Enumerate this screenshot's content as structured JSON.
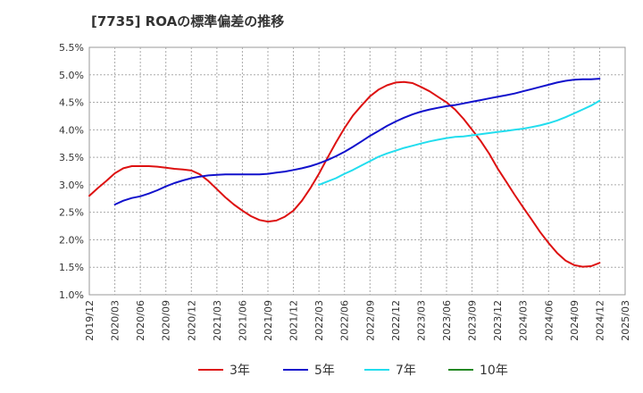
{
  "chart_data": {
    "type": "line",
    "title": "[7735]  ROAの標準偏差の推移",
    "xlabel": "",
    "ylabel": "",
    "x_ticks": [
      "2019/12",
      "2020/03",
      "2020/06",
      "2020/09",
      "2020/12",
      "2021/03",
      "2021/06",
      "2021/09",
      "2021/12",
      "2022/03",
      "2022/06",
      "2022/09",
      "2022/12",
      "2023/03",
      "2023/06",
      "2023/09",
      "2023/12",
      "2024/03",
      "2024/06",
      "2024/09",
      "2024/12",
      "2025/03"
    ],
    "y_ticks": [
      "5.5%",
      "5.0%",
      "4.5%",
      "4.0%",
      "3.5%",
      "3.0%",
      "2.5%",
      "2.0%",
      "1.5%",
      "1.0%"
    ],
    "ylim": [
      1.0,
      5.5
    ],
    "grid": true,
    "legend_position": "bottom",
    "series": [
      {
        "name": "3年",
        "color": "#dd1111",
        "x": [
          "2019/12",
          "2020/01",
          "2020/02",
          "2020/03",
          "2020/04",
          "2020/05",
          "2020/06",
          "2020/07",
          "2020/08",
          "2020/09",
          "2020/10",
          "2020/11",
          "2020/12",
          "2021/01",
          "2021/02",
          "2021/03",
          "2021/04",
          "2021/05",
          "2021/06",
          "2021/07",
          "2021/08",
          "2021/09",
          "2021/10",
          "2021/11",
          "2021/12",
          "2022/01",
          "2022/02",
          "2022/03",
          "2022/04",
          "2022/05",
          "2022/06",
          "2022/07",
          "2022/08",
          "2022/09",
          "2022/10",
          "2022/11",
          "2022/12",
          "2023/01",
          "2023/02",
          "2023/03",
          "2023/04",
          "2023/05",
          "2023/06",
          "2023/07",
          "2023/08",
          "2023/09",
          "2023/10",
          "2023/11",
          "2023/12",
          "2024/01",
          "2024/02",
          "2024/03",
          "2024/04",
          "2024/05",
          "2024/06",
          "2024/07",
          "2024/08",
          "2024/09",
          "2024/10",
          "2024/11",
          "2024/12"
        ],
        "values": [
          2.8,
          2.94,
          3.07,
          3.21,
          3.3,
          3.34,
          3.34,
          3.34,
          3.33,
          3.31,
          3.29,
          3.28,
          3.26,
          3.19,
          3.07,
          2.92,
          2.77,
          2.64,
          2.53,
          2.43,
          2.36,
          2.33,
          2.35,
          2.42,
          2.53,
          2.71,
          2.94,
          3.2,
          3.49,
          3.77,
          4.03,
          4.26,
          4.44,
          4.61,
          4.73,
          4.81,
          4.86,
          4.87,
          4.85,
          4.78,
          4.7,
          4.6,
          4.5,
          4.37,
          4.2,
          4.0,
          3.8,
          3.57,
          3.3,
          3.06,
          2.82,
          2.59,
          2.37,
          2.14,
          1.94,
          1.76,
          1.62,
          1.54,
          1.51,
          1.52,
          1.58
        ]
      },
      {
        "name": "5年",
        "color": "#1111cc",
        "x": [
          "2020/03",
          "2020/04",
          "2020/05",
          "2020/06",
          "2020/07",
          "2020/08",
          "2020/09",
          "2020/10",
          "2020/11",
          "2020/12",
          "2021/01",
          "2021/02",
          "2021/03",
          "2021/04",
          "2021/05",
          "2021/06",
          "2021/07",
          "2021/08",
          "2021/09",
          "2021/10",
          "2021/11",
          "2021/12",
          "2022/01",
          "2022/02",
          "2022/03",
          "2022/04",
          "2022/05",
          "2022/06",
          "2022/07",
          "2022/08",
          "2022/09",
          "2022/10",
          "2022/11",
          "2022/12",
          "2023/01",
          "2023/02",
          "2023/03",
          "2023/04",
          "2023/05",
          "2023/06",
          "2023/07",
          "2023/08",
          "2023/09",
          "2023/10",
          "2023/11",
          "2023/12",
          "2024/01",
          "2024/02",
          "2024/03",
          "2024/04",
          "2024/05",
          "2024/06",
          "2024/07",
          "2024/08",
          "2024/09",
          "2024/10",
          "2024/11",
          "2024/12"
        ],
        "values": [
          2.64,
          2.71,
          2.76,
          2.79,
          2.84,
          2.9,
          2.97,
          3.03,
          3.08,
          3.12,
          3.15,
          3.17,
          3.18,
          3.19,
          3.19,
          3.19,
          3.19,
          3.19,
          3.2,
          3.22,
          3.24,
          3.27,
          3.3,
          3.34,
          3.39,
          3.45,
          3.52,
          3.6,
          3.69,
          3.79,
          3.89,
          3.98,
          4.07,
          4.15,
          4.22,
          4.28,
          4.33,
          4.37,
          4.4,
          4.43,
          4.45,
          4.48,
          4.51,
          4.54,
          4.57,
          4.6,
          4.63,
          4.66,
          4.7,
          4.74,
          4.78,
          4.82,
          4.86,
          4.89,
          4.91,
          4.92,
          4.92,
          4.93
        ]
      },
      {
        "name": "7年",
        "color": "#22ddee",
        "x": [
          "2022/03",
          "2022/04",
          "2022/05",
          "2022/06",
          "2022/07",
          "2022/08",
          "2022/09",
          "2022/10",
          "2022/11",
          "2022/12",
          "2023/01",
          "2023/02",
          "2023/03",
          "2023/04",
          "2023/05",
          "2023/06",
          "2023/07",
          "2023/08",
          "2023/09",
          "2023/10",
          "2023/11",
          "2023/12",
          "2024/01",
          "2024/02",
          "2024/03",
          "2024/04",
          "2024/05",
          "2024/06",
          "2024/07",
          "2024/08",
          "2024/09",
          "2024/10",
          "2024/11",
          "2024/12"
        ],
        "values": [
          3.0,
          3.06,
          3.12,
          3.2,
          3.27,
          3.35,
          3.43,
          3.51,
          3.57,
          3.62,
          3.67,
          3.71,
          3.75,
          3.79,
          3.82,
          3.85,
          3.87,
          3.88,
          3.9,
          3.92,
          3.94,
          3.96,
          3.98,
          4.0,
          4.02,
          4.05,
          4.08,
          4.12,
          4.17,
          4.23,
          4.3,
          4.37,
          4.44,
          4.53
        ]
      },
      {
        "name": "10年",
        "color": "#228822",
        "x": [],
        "values": []
      }
    ]
  }
}
